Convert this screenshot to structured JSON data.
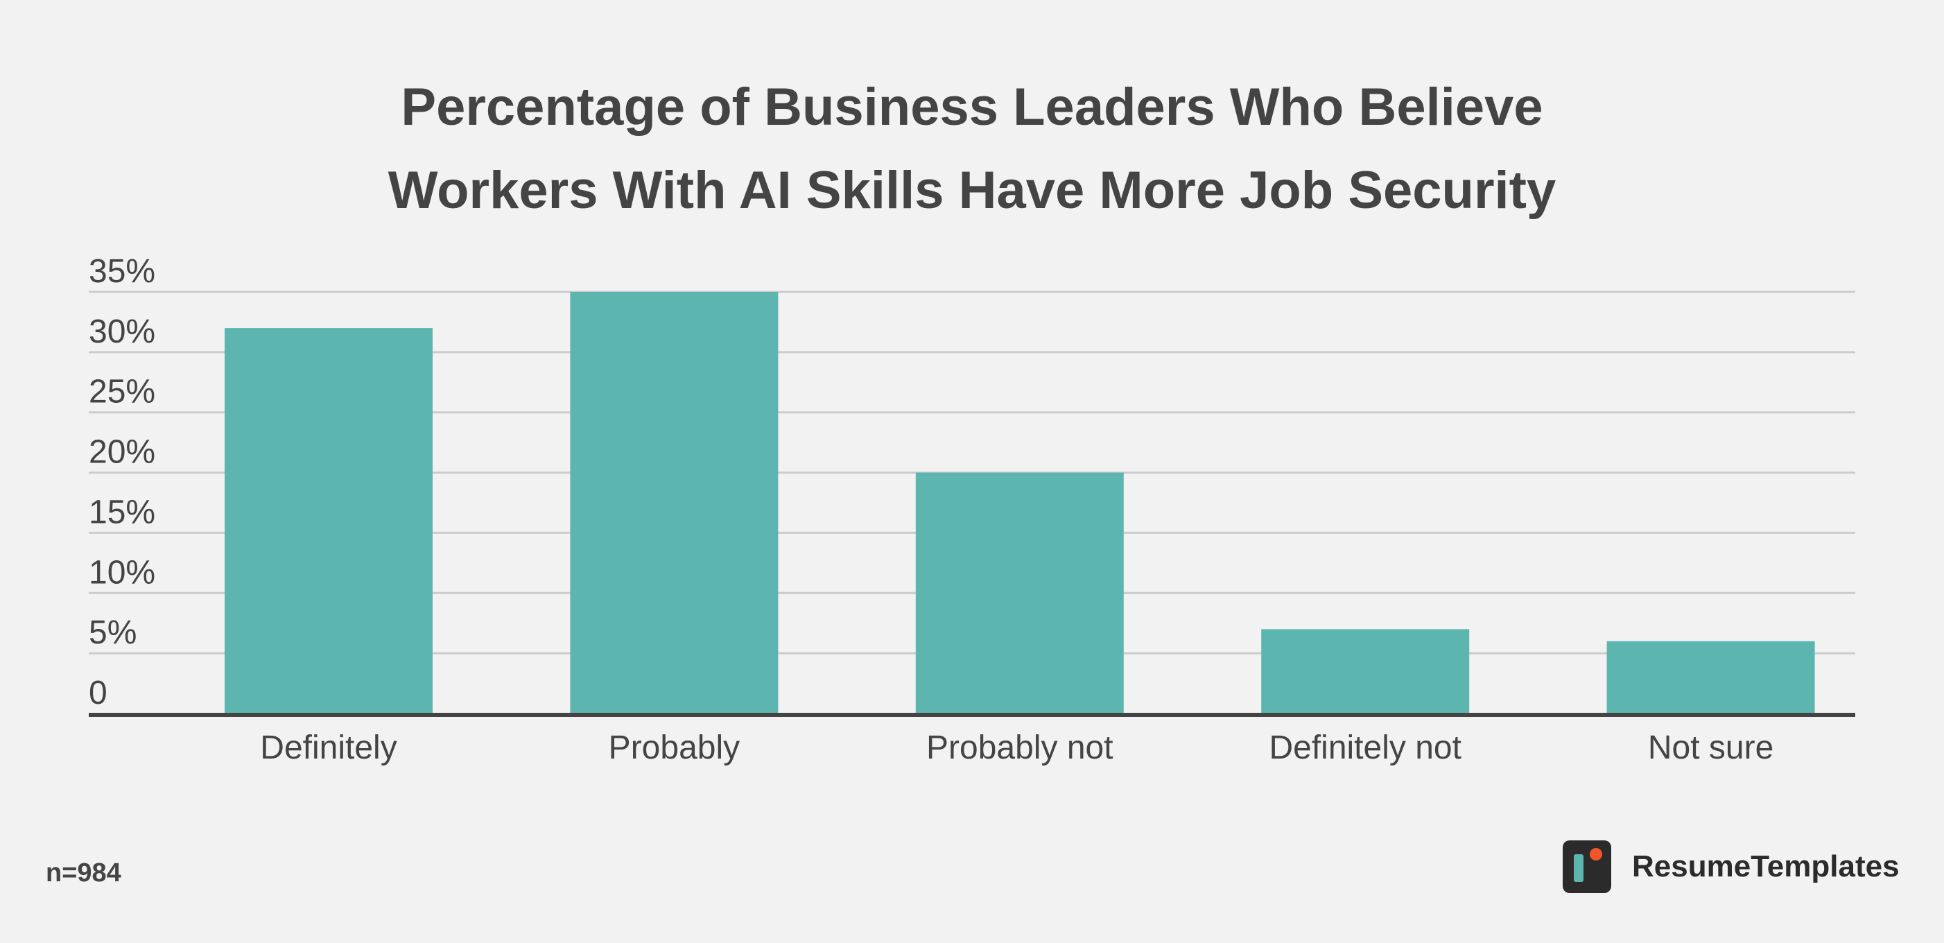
{
  "chart_data": {
    "type": "bar",
    "title_lines": [
      "Percentage of Business Leaders Who Believe",
      "Workers With AI Skills Have More Job Security"
    ],
    "categories": [
      "Definitely",
      "Probably",
      "Probably not",
      "Definitely not",
      "Not sure"
    ],
    "values": [
      32,
      35,
      20,
      7,
      6
    ],
    "unit": "%",
    "ylim": [
      0,
      35
    ],
    "yticks": [
      "0",
      "5%",
      "10%",
      "15%",
      "20%",
      "25%",
      "30%",
      "35%"
    ],
    "ytick_values": [
      0,
      5,
      10,
      15,
      20,
      25,
      30,
      35
    ],
    "grid": true,
    "bar_color": "#5db5b0",
    "xlabel": "",
    "ylabel": ""
  },
  "footnote": "n=984",
  "brand": {
    "name": "ResumeTemplates",
    "logo_icon": "resumetemplates-logo-icon",
    "logo_dark": "#2b2b2b",
    "logo_accent": "#5db5b0",
    "logo_dot": "#f0562a"
  }
}
